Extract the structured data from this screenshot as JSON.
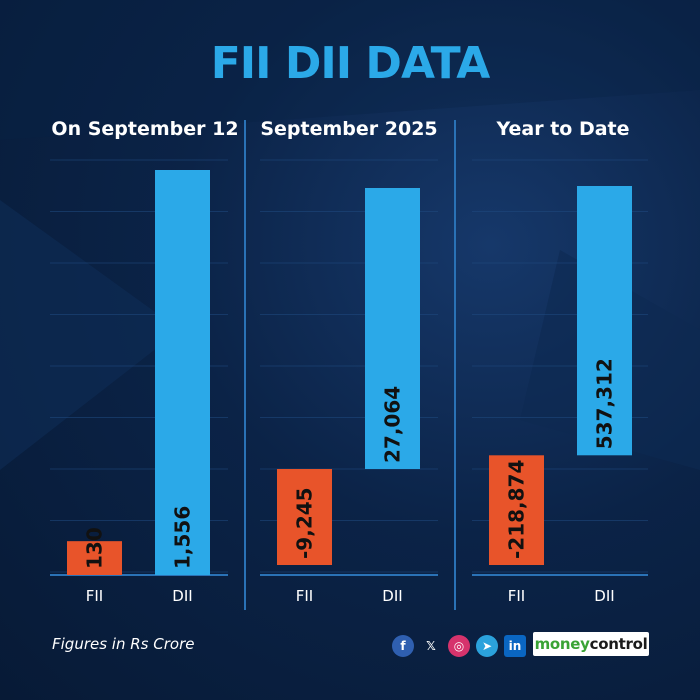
{
  "title": "FII DII DATA",
  "footnote": "Figures in Rs Crore",
  "logo": {
    "part1": "money",
    "part2": "control"
  },
  "social_icons": [
    "facebook-icon",
    "x-icon",
    "instagram-icon",
    "telegram-icon",
    "linkedin-icon"
  ],
  "colors": {
    "title": "#2ba9e8",
    "fii": "#e8542a",
    "dii": "#2ba9e8",
    "axis": "#2a72b6"
  },
  "panels": [
    {
      "title": "On September 12"
    },
    {
      "title": "September 2025"
    },
    {
      "title": "Year to Date"
    }
  ],
  "chart_data": [
    {
      "type": "bar",
      "title": "On September 12",
      "categories": [
        "FII",
        "DII"
      ],
      "values": [
        130,
        1556
      ],
      "labels": [
        "130",
        "1,556"
      ]
    },
    {
      "type": "bar",
      "title": "September 2025",
      "categories": [
        "FII",
        "DII"
      ],
      "values": [
        -9245,
        27064
      ],
      "labels": [
        "-9,245",
        "27,064"
      ]
    },
    {
      "type": "bar",
      "title": "Year to Date",
      "categories": [
        "FII",
        "DII"
      ],
      "values": [
        -218874,
        537312
      ],
      "labels": [
        "-218,874",
        "537,312"
      ]
    }
  ]
}
